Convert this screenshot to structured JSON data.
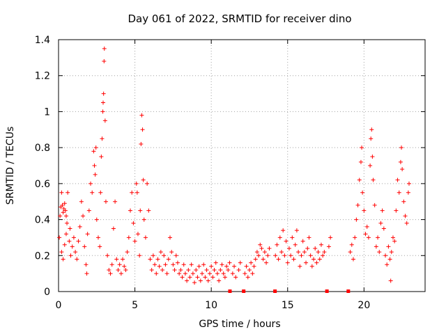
{
  "chart_data": {
    "type": "scatter",
    "title": "Day 061 of 2022, SRMTID for receiver dino",
    "xlabel": "GPS time / hours",
    "ylabel": "SRMTID / TECUs",
    "xlim": [
      0,
      24
    ],
    "ylim": [
      0,
      1.4
    ],
    "xticks": [
      0,
      5,
      10,
      15,
      20
    ],
    "yticks": [
      0,
      0.2,
      0.4,
      0.6,
      0.8,
      1,
      1.2,
      1.4
    ],
    "xtick_labels": [
      "0",
      "5",
      "10",
      "15",
      "20"
    ],
    "ytick_labels": [
      "0",
      "0.2",
      "0.4",
      "0.6",
      "0.8",
      "1",
      "1.2",
      "1.4"
    ],
    "grid": true,
    "marker": "+",
    "color": "#ff0000",
    "series": [
      {
        "name": "SRMTID",
        "points": [
          [
            0.05,
            0.3
          ],
          [
            0.1,
            0.42
          ],
          [
            0.15,
            0.47
          ],
          [
            0.2,
            0.55
          ],
          [
            0.25,
            0.48
          ],
          [
            0.3,
            0.44
          ],
          [
            0.35,
            0.46
          ],
          [
            0.4,
            0.49
          ],
          [
            0.45,
            0.45
          ],
          [
            0.5,
            0.42
          ],
          [
            0.55,
            0.38
          ],
          [
            0.2,
            0.22
          ],
          [
            0.3,
            0.18
          ],
          [
            0.4,
            0.26
          ],
          [
            0.5,
            0.32
          ],
          [
            0.6,
            0.55
          ],
          [
            0.7,
            0.28
          ],
          [
            0.75,
            0.35
          ],
          [
            0.8,
            0.2
          ],
          [
            0.9,
            0.25
          ],
          [
            1.0,
            0.3
          ],
          [
            1.1,
            0.22
          ],
          [
            1.2,
            0.18
          ],
          [
            1.3,
            0.28
          ],
          [
            1.4,
            0.36
          ],
          [
            1.5,
            0.5
          ],
          [
            1.6,
            0.42
          ],
          [
            1.7,
            0.25
          ],
          [
            1.8,
            0.15
          ],
          [
            1.85,
            0.1
          ],
          [
            1.9,
            0.32
          ],
          [
            2.0,
            0.45
          ],
          [
            2.1,
            0.6
          ],
          [
            2.2,
            0.55
          ],
          [
            2.3,
            0.78
          ],
          [
            2.35,
            0.7
          ],
          [
            2.4,
            0.65
          ],
          [
            2.45,
            0.8
          ],
          [
            2.5,
            0.4
          ],
          [
            2.6,
            0.3
          ],
          [
            2.7,
            0.25
          ],
          [
            2.75,
            0.55
          ],
          [
            2.8,
            0.75
          ],
          [
            2.85,
            0.85
          ],
          [
            2.9,
            1.0
          ],
          [
            2.92,
            1.05
          ],
          [
            2.95,
            1.1
          ],
          [
            2.98,
            1.28
          ],
          [
            3.0,
            1.35
          ],
          [
            3.05,
            0.95
          ],
          [
            3.1,
            0.5
          ],
          [
            3.2,
            0.2
          ],
          [
            3.3,
            0.12
          ],
          [
            3.4,
            0.1
          ],
          [
            3.5,
            0.15
          ],
          [
            3.6,
            0.35
          ],
          [
            3.7,
            0.5
          ],
          [
            3.8,
            0.18
          ],
          [
            3.9,
            0.12
          ],
          [
            4.0,
            0.15
          ],
          [
            4.1,
            0.1
          ],
          [
            4.2,
            0.18
          ],
          [
            4.3,
            0.14
          ],
          [
            4.4,
            0.12
          ],
          [
            4.5,
            0.22
          ],
          [
            4.6,
            0.3
          ],
          [
            4.7,
            0.45
          ],
          [
            4.8,
            0.55
          ],
          [
            4.9,
            0.38
          ],
          [
            5.0,
            0.28
          ],
          [
            5.1,
            0.6
          ],
          [
            5.15,
            0.55
          ],
          [
            5.2,
            0.32
          ],
          [
            5.3,
            0.2
          ],
          [
            5.35,
            0.45
          ],
          [
            5.4,
            0.82
          ],
          [
            5.45,
            0.98
          ],
          [
            5.5,
            0.9
          ],
          [
            5.55,
            0.62
          ],
          [
            5.6,
            0.4
          ],
          [
            5.7,
            0.3
          ],
          [
            5.8,
            0.6
          ],
          [
            5.9,
            0.45
          ],
          [
            6.0,
            0.18
          ],
          [
            6.1,
            0.12
          ],
          [
            6.2,
            0.2
          ],
          [
            6.3,
            0.15
          ],
          [
            6.4,
            0.1
          ],
          [
            6.5,
            0.18
          ],
          [
            6.6,
            0.14
          ],
          [
            6.7,
            0.22
          ],
          [
            6.8,
            0.12
          ],
          [
            6.9,
            0.2
          ],
          [
            7.0,
            0.15
          ],
          [
            7.1,
            0.1
          ],
          [
            7.2,
            0.18
          ],
          [
            7.3,
            0.3
          ],
          [
            7.4,
            0.22
          ],
          [
            7.5,
            0.15
          ],
          [
            7.6,
            0.12
          ],
          [
            7.7,
            0.2
          ],
          [
            7.8,
            0.16
          ],
          [
            7.9,
            0.1
          ],
          [
            8.0,
            0.12
          ],
          [
            8.1,
            0.08
          ],
          [
            8.2,
            0.15
          ],
          [
            8.3,
            0.1
          ],
          [
            8.4,
            0.06
          ],
          [
            8.5,
            0.12
          ],
          [
            8.6,
            0.08
          ],
          [
            8.7,
            0.15
          ],
          [
            8.8,
            0.1
          ],
          [
            8.9,
            0.05
          ],
          [
            9.0,
            0.12
          ],
          [
            9.1,
            0.08
          ],
          [
            9.2,
            0.14
          ],
          [
            9.3,
            0.06
          ],
          [
            9.4,
            0.1
          ],
          [
            9.5,
            0.15
          ],
          [
            9.6,
            0.08
          ],
          [
            9.7,
            0.12
          ],
          [
            9.8,
            0.06
          ],
          [
            9.9,
            0.1
          ],
          [
            10.0,
            0.14
          ],
          [
            10.1,
            0.08
          ],
          [
            10.2,
            0.12
          ],
          [
            10.3,
            0.16
          ],
          [
            10.4,
            0.1
          ],
          [
            10.5,
            0.06
          ],
          [
            10.6,
            0.12
          ],
          [
            10.7,
            0.15
          ],
          [
            10.8,
            0.1
          ],
          [
            10.9,
            0.08
          ],
          [
            11.0,
            0.14
          ],
          [
            11.1,
            0.12
          ],
          [
            11.2,
            0.16
          ],
          [
            11.4,
            0.1
          ],
          [
            11.5,
            0.14
          ],
          [
            11.6,
            0.08
          ],
          [
            11.8,
            0.12
          ],
          [
            11.9,
            0.16
          ],
          [
            12.2,
            0.1
          ],
          [
            12.3,
            0.14
          ],
          [
            12.4,
            0.08
          ],
          [
            12.5,
            0.12
          ],
          [
            12.6,
            0.16
          ],
          [
            12.7,
            0.1
          ],
          [
            12.8,
            0.14
          ],
          [
            12.9,
            0.18
          ],
          [
            13.0,
            0.22
          ],
          [
            13.1,
            0.2
          ],
          [
            13.2,
            0.26
          ],
          [
            13.3,
            0.24
          ],
          [
            13.4,
            0.18
          ],
          [
            13.5,
            0.22
          ],
          [
            13.6,
            0.16
          ],
          [
            13.7,
            0.2
          ],
          [
            13.8,
            0.24
          ],
          [
            14.2,
            0.2
          ],
          [
            14.3,
            0.26
          ],
          [
            14.4,
            0.18
          ],
          [
            14.5,
            0.3
          ],
          [
            14.6,
            0.22
          ],
          [
            14.7,
            0.34
          ],
          [
            14.8,
            0.2
          ],
          [
            14.9,
            0.28
          ],
          [
            15.0,
            0.16
          ],
          [
            15.1,
            0.24
          ],
          [
            15.2,
            0.2
          ],
          [
            15.3,
            0.3
          ],
          [
            15.4,
            0.18
          ],
          [
            15.5,
            0.26
          ],
          [
            15.6,
            0.34
          ],
          [
            15.7,
            0.22
          ],
          [
            15.8,
            0.14
          ],
          [
            15.9,
            0.2
          ],
          [
            16.0,
            0.28
          ],
          [
            16.1,
            0.22
          ],
          [
            16.2,
            0.16
          ],
          [
            16.3,
            0.24
          ],
          [
            16.4,
            0.3
          ],
          [
            16.5,
            0.2
          ],
          [
            16.6,
            0.14
          ],
          [
            16.7,
            0.18
          ],
          [
            16.8,
            0.24
          ],
          [
            16.9,
            0.16
          ],
          [
            17.0,
            0.22
          ],
          [
            17.1,
            0.18
          ],
          [
            17.2,
            0.26
          ],
          [
            17.3,
            0.2
          ],
          [
            17.4,
            0.22
          ],
          [
            17.7,
            0.25
          ],
          [
            17.8,
            0.3
          ],
          [
            19.1,
            0.22
          ],
          [
            19.2,
            0.26
          ],
          [
            19.3,
            0.18
          ],
          [
            19.4,
            0.3
          ],
          [
            19.5,
            0.4
          ],
          [
            19.6,
            0.48
          ],
          [
            19.7,
            0.62
          ],
          [
            19.8,
            0.72
          ],
          [
            19.85,
            0.8
          ],
          [
            19.9,
            0.55
          ],
          [
            20.0,
            0.45
          ],
          [
            20.1,
            0.32
          ],
          [
            20.2,
            0.36
          ],
          [
            20.3,
            0.3
          ],
          [
            20.4,
            0.7
          ],
          [
            20.45,
            0.85
          ],
          [
            20.5,
            0.9
          ],
          [
            20.55,
            0.75
          ],
          [
            20.6,
            0.62
          ],
          [
            20.7,
            0.48
          ],
          [
            20.8,
            0.25
          ],
          [
            20.9,
            0.3
          ],
          [
            21.0,
            0.22
          ],
          [
            21.1,
            0.38
          ],
          [
            21.2,
            0.45
          ],
          [
            21.3,
            0.35
          ],
          [
            21.4,
            0.2
          ],
          [
            21.5,
            0.15
          ],
          [
            21.6,
            0.25
          ],
          [
            21.7,
            0.18
          ],
          [
            21.75,
            0.06
          ],
          [
            21.8,
            0.22
          ],
          [
            21.9,
            0.3
          ],
          [
            22.0,
            0.28
          ],
          [
            22.1,
            0.45
          ],
          [
            22.2,
            0.62
          ],
          [
            22.3,
            0.55
          ],
          [
            22.4,
            0.72
          ],
          [
            22.45,
            0.8
          ],
          [
            22.5,
            0.68
          ],
          [
            22.6,
            0.5
          ],
          [
            22.7,
            0.42
          ],
          [
            22.8,
            0.38
          ],
          [
            22.9,
            0.55
          ],
          [
            22.95,
            0.6
          ]
        ]
      }
    ],
    "gap_markers": [
      11.2,
      12.1,
      14.15,
      17.55,
      18.95
    ]
  }
}
